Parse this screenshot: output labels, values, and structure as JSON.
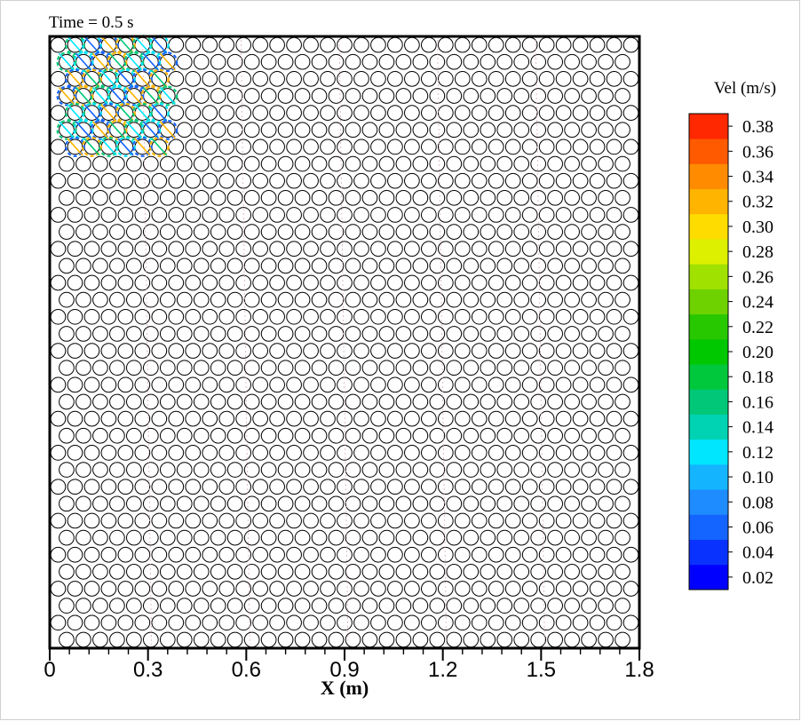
{
  "chart_data": {
    "type": "heatmap",
    "title": "Time = 0.5 s",
    "xlabel": "X (m)",
    "xlim": [
      0,
      1.8
    ],
    "ylim": [
      0,
      1.8
    ],
    "x_ticks": [
      0,
      0.3,
      0.6,
      0.9,
      1.2,
      1.5,
      1.8
    ],
    "x_tick_labels": [
      "0",
      "0.3",
      "0.6",
      "0.9",
      "1.2",
      "1.5",
      "1.8"
    ],
    "grid": false,
    "obstacles": {
      "shape": "circle",
      "columns": 35,
      "rows": 36
    },
    "colorbar": {
      "title": "Vel (m/s)",
      "placement": "right",
      "levels": [
        0.02,
        0.04,
        0.06,
        0.08,
        0.1,
        0.12,
        0.14,
        0.16,
        0.18,
        0.2,
        0.22,
        0.24,
        0.26,
        0.28,
        0.3,
        0.32,
        0.34,
        0.36,
        0.38
      ],
      "level_labels": [
        "0.02",
        "0.04",
        "0.06",
        "0.08",
        "0.10",
        "0.12",
        "0.14",
        "0.16",
        "0.18",
        "0.20",
        "0.22",
        "0.24",
        "0.26",
        "0.28",
        "0.30",
        "0.32",
        "0.34",
        "0.36",
        "0.38"
      ],
      "colors": [
        "#0000ff",
        "#0a32ff",
        "#1464ff",
        "#1e8cff",
        "#14b4ff",
        "#00e6ff",
        "#00d2b4",
        "#00c878",
        "#00c83c",
        "#00c800",
        "#28c800",
        "#6ed200",
        "#a0e100",
        "#dcf000",
        "#ffdc00",
        "#ffb400",
        "#ff8c00",
        "#ff5a00",
        "#ff2800"
      ]
    },
    "active_region": {
      "x_range": [
        0.03,
        0.38
      ],
      "y_range": [
        1.47,
        1.78
      ],
      "colors": [
        "#ffb400",
        "#00c878",
        "#00e6ff",
        "#1464ff"
      ]
    }
  }
}
